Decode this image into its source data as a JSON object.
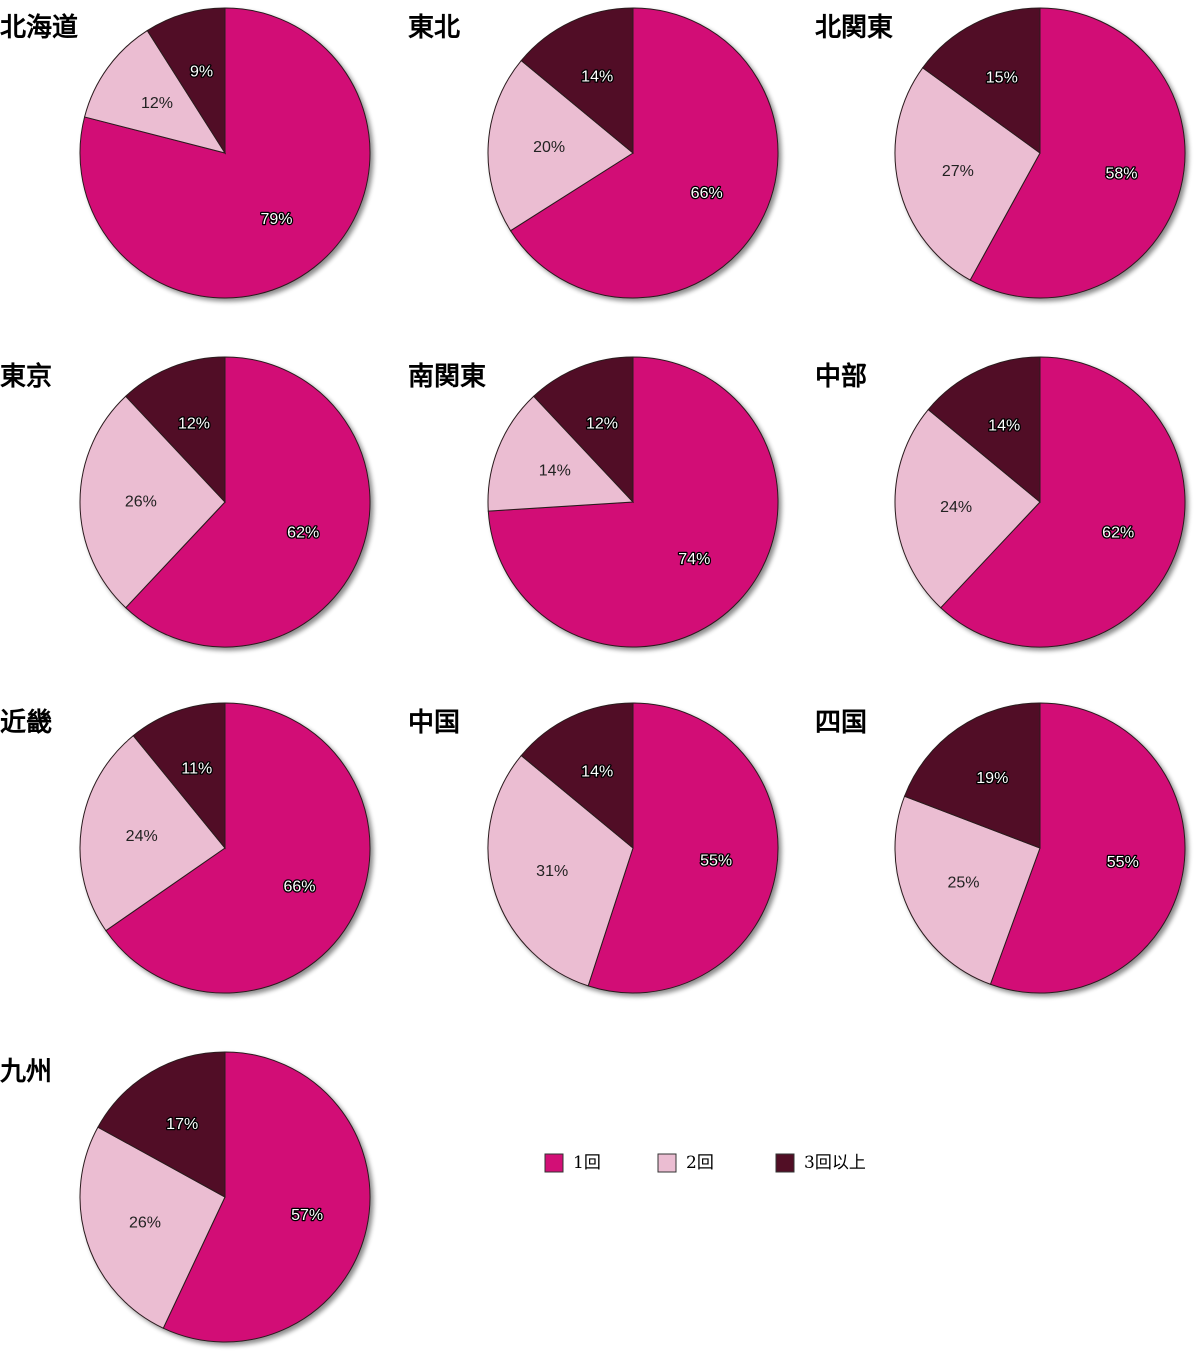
{
  "colors": {
    "once": "#D20F76",
    "twice": "#EBBDD2",
    "three_plus": "#510E25",
    "edge": "#2A1A1E",
    "shadow": "#9C9C9C"
  },
  "legend": {
    "items": [
      {
        "label": "1回",
        "color": "#D20F76"
      },
      {
        "label": "2回",
        "color": "#EBBDD2"
      },
      {
        "label": "3回以上",
        "color": "#510E25"
      }
    ]
  },
  "chart_data": [
    {
      "type": "pie",
      "title": "北海道",
      "labels": [
        "1回",
        "2回",
        "3回以上"
      ],
      "values": [
        79,
        12,
        9
      ],
      "value_labels": [
        "79%",
        "12%",
        "9%"
      ]
    },
    {
      "type": "pie",
      "title": "東北",
      "labels": [
        "1回",
        "2回",
        "3回以上"
      ],
      "values": [
        66,
        20,
        14
      ],
      "value_labels": [
        "66%",
        "20%",
        "14%"
      ]
    },
    {
      "type": "pie",
      "title": "北関東",
      "labels": [
        "1回",
        "2回",
        "3回以上"
      ],
      "values": [
        58,
        27,
        15
      ],
      "value_labels": [
        "58%",
        "27%",
        "15%"
      ]
    },
    {
      "type": "pie",
      "title": "東京",
      "labels": [
        "1回",
        "2回",
        "3回以上"
      ],
      "values": [
        62,
        26,
        12
      ],
      "value_labels": [
        "62%",
        "26%",
        "12%"
      ]
    },
    {
      "type": "pie",
      "title": "南関東",
      "labels": [
        "1回",
        "2回",
        "3回以上"
      ],
      "values": [
        74,
        14,
        12
      ],
      "value_labels": [
        "74%",
        "14%",
        "12%"
      ]
    },
    {
      "type": "pie",
      "title": "中部",
      "labels": [
        "1回",
        "2回",
        "3回以上"
      ],
      "values": [
        62,
        24,
        14
      ],
      "value_labels": [
        "62%",
        "24%",
        "14%"
      ]
    },
    {
      "type": "pie",
      "title": "近畿",
      "labels": [
        "1回",
        "2回",
        "3回以上"
      ],
      "values": [
        66,
        24,
        11
      ],
      "value_labels": [
        "66%",
        "24%",
        "11%"
      ]
    },
    {
      "type": "pie",
      "title": "中国",
      "labels": [
        "1回",
        "2回",
        "3回以上"
      ],
      "values": [
        55,
        31,
        14
      ],
      "value_labels": [
        "55%",
        "31%",
        "14%"
      ]
    },
    {
      "type": "pie",
      "title": "四国",
      "labels": [
        "1回",
        "2回",
        "3回以上"
      ],
      "values": [
        55,
        25,
        19
      ],
      "value_labels": [
        "55%",
        "25%",
        "19%"
      ]
    },
    {
      "type": "pie",
      "title": "九州",
      "labels": [
        "1回",
        "2回",
        "3回以上"
      ],
      "values": [
        57,
        26,
        17
      ],
      "value_labels": [
        "57%",
        "26%",
        "17%"
      ]
    }
  ]
}
